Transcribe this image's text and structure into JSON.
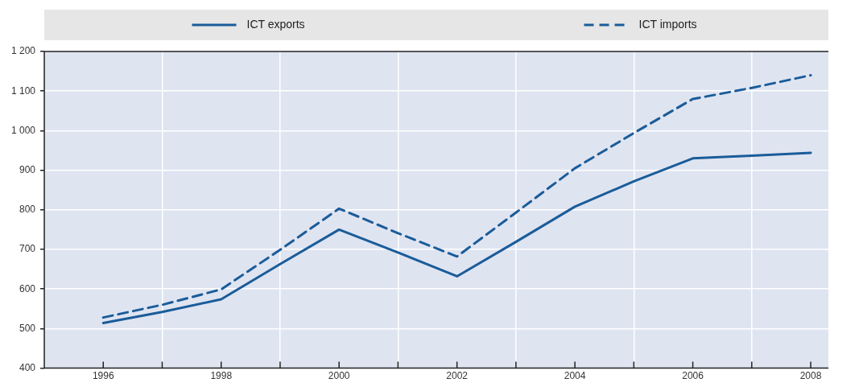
{
  "chart_data": {
    "type": "line",
    "x": [
      1996,
      1997,
      1998,
      1999,
      2000,
      2001,
      2002,
      2003,
      2004,
      2005,
      2006,
      2007,
      2008
    ],
    "series": [
      {
        "name": "ICT exports",
        "color": "#1a5c99",
        "line_style": "solid",
        "values": [
          514,
          542,
          574,
          663,
          750,
          692,
          632,
          719,
          808,
          872,
          930,
          937,
          944
        ]
      },
      {
        "name": "ICT imports",
        "color": "#1a5c99",
        "line_style": "dashed",
        "values": [
          528,
          560,
          599,
          699,
          803,
          741,
          682,
          793,
          905,
          994,
          1080,
          1108,
          1140
        ]
      }
    ],
    "xlim": [
      1995,
      2008.3
    ],
    "xticks": [
      1996,
      {
        "value": 1997,
        "label": null
      },
      1998,
      {
        "value": 1999,
        "label": null
      },
      2000,
      {
        "value": 2001,
        "label": null
      },
      2002,
      {
        "value": 2003,
        "label": null
      },
      2004,
      {
        "value": 2005,
        "label": null
      },
      2006,
      {
        "value": 2007,
        "label": null
      },
      2008
    ],
    "ylim": [
      400,
      1200
    ],
    "yticks": [
      400,
      500,
      600,
      700,
      800,
      900,
      {
        "value": 1000,
        "label": "1 000"
      },
      {
        "value": 1100,
        "label": "1 100"
      },
      {
        "value": 1200,
        "label": "1 200"
      }
    ],
    "grid": true,
    "legend": "top",
    "marker": "none"
  }
}
